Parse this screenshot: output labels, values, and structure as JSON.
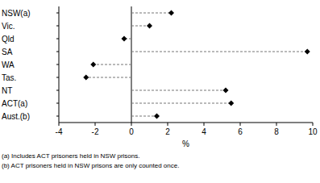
{
  "chart_data": {
    "type": "dot",
    "orientation": "horizontal",
    "categories": [
      "NSW(a)",
      "Vic.",
      "Qld",
      "SA",
      "WA",
      "Tas.",
      "NT",
      "ACT(a)",
      "Aust.(b)"
    ],
    "values": [
      2.2,
      1.0,
      -0.4,
      9.7,
      -2.1,
      -2.5,
      5.2,
      5.5,
      1.4
    ],
    "color": "#000000",
    "marker": "diamond",
    "line_style": "dashed",
    "xlim": [
      -4,
      10
    ],
    "xticks": [
      -4,
      -2,
      0,
      2,
      4,
      6,
      8,
      10
    ],
    "x_label": "%",
    "grid": false,
    "annotations": [
      "(a) Includes ACT prisoners held in NSW prisons.",
      "(b) ACT prisoners held in NSW prisons are only counted once."
    ]
  }
}
